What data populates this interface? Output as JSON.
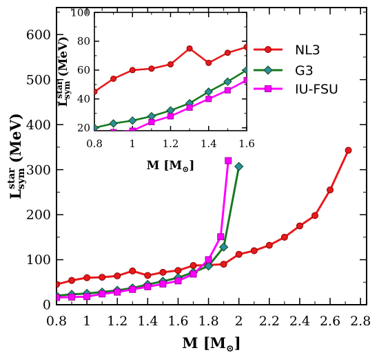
{
  "chart_data": [
    {
      "type": "line",
      "x_ticks": [
        "0.8",
        "1",
        "1.2",
        "1.4",
        "1.6",
        "1.8",
        "2",
        "2.2",
        "2.4",
        "2.6",
        "2.8"
      ],
      "y_ticks": [
        "0",
        "100",
        "200",
        "300",
        "400",
        "500",
        "600"
      ],
      "xlim": [
        0.8,
        2.84
      ],
      "ylim": [
        0,
        660
      ],
      "xlabel": {
        "main": "M [M",
        "symbol": "⊙",
        "close": "]"
      },
      "ylabel": {
        "main": "L",
        "sup": "star",
        "sub": "sym",
        "rest": " (MeV)"
      },
      "legend": {
        "position": "top-right"
      },
      "grid": false,
      "series": [
        {
          "name": "NL3",
          "color": "#e8191c",
          "marker": "circle",
          "x": [
            0.8,
            0.9,
            1.0,
            1.1,
            1.2,
            1.3,
            1.4,
            1.5,
            1.6,
            1.7,
            1.8,
            1.9,
            2.0,
            2.1,
            2.2,
            2.3,
            2.4,
            2.5,
            2.6,
            2.72
          ],
          "y": [
            45,
            54,
            60,
            61,
            64,
            75,
            65,
            72,
            76,
            87,
            88,
            90,
            112,
            120,
            132,
            150,
            175,
            198,
            255,
            343
          ]
        },
        {
          "name": "G3",
          "color": "#157a1e",
          "marker": "diamond",
          "markerFill": "#2c8f9c",
          "x": [
            0.8,
            0.9,
            1.0,
            1.1,
            1.2,
            1.3,
            1.4,
            1.5,
            1.6,
            1.7,
            1.8,
            1.9,
            2.0
          ],
          "y": [
            20,
            23,
            25,
            28,
            32,
            37,
            45,
            52,
            60,
            72,
            86,
            128,
            307
          ]
        },
        {
          "name": "IU-FSU",
          "color": "#ff00ff",
          "marker": "square",
          "x": [
            0.8,
            0.9,
            1.0,
            1.1,
            1.2,
            1.3,
            1.4,
            1.5,
            1.6,
            1.7,
            1.8,
            1.88,
            1.93
          ],
          "y": [
            16,
            17,
            18,
            24,
            28,
            34,
            40,
            46,
            53,
            68,
            100,
            151,
            320
          ]
        }
      ]
    },
    {
      "type": "line",
      "x_ticks": [
        "0.8",
        "1",
        "1.2",
        "1.4",
        "1.6"
      ],
      "y_ticks": [
        "20",
        "40",
        "60",
        "80",
        "100"
      ],
      "xlim": [
        0.8,
        1.6
      ],
      "ylim": [
        18,
        100
      ],
      "xlabel": {
        "main": "M [M",
        "symbol": "⊙",
        "close": "]"
      },
      "ylabel": {
        "main": "L",
        "sup": "star",
        "sub": "sym",
        "rest": " (MeV)"
      },
      "grid": false,
      "series": [
        {
          "name": "NL3",
          "color": "#e8191c",
          "marker": "circle",
          "x": [
            0.8,
            0.9,
            1.0,
            1.1,
            1.2,
            1.3,
            1.4,
            1.5,
            1.6
          ],
          "y": [
            45,
            54,
            60,
            61,
            64,
            75,
            65,
            72,
            76
          ]
        },
        {
          "name": "G3",
          "color": "#157a1e",
          "marker": "diamond",
          "markerFill": "#2c8f9c",
          "x": [
            0.8,
            0.9,
            1.0,
            1.1,
            1.2,
            1.3,
            1.4,
            1.5,
            1.6
          ],
          "y": [
            20,
            23,
            25,
            28,
            32,
            37,
            45,
            52,
            60
          ]
        },
        {
          "name": "IU-FSU",
          "color": "#ff00ff",
          "marker": "square",
          "x": [
            0.8,
            0.9,
            1.0,
            1.1,
            1.2,
            1.3,
            1.4,
            1.5,
            1.6
          ],
          "y": [
            16,
            17,
            18,
            24,
            28,
            34,
            40,
            46,
            53
          ]
        }
      ]
    }
  ]
}
